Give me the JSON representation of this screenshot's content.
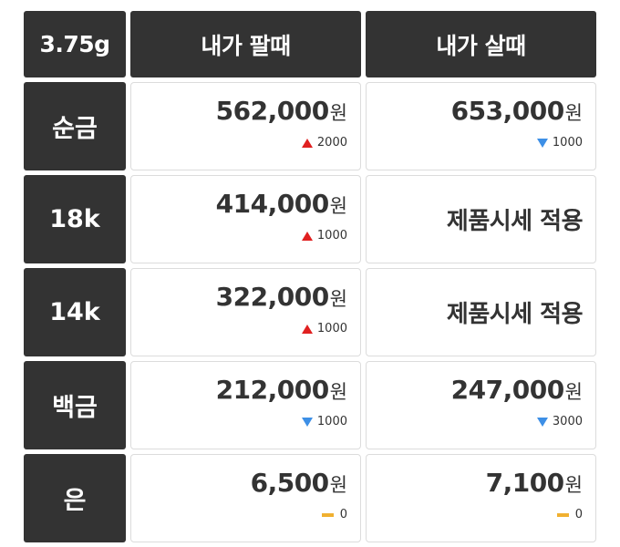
{
  "header": {
    "weight": "3.75g",
    "sell_label": "내가 팔때",
    "buy_label": "내가 살때"
  },
  "unit": "원",
  "rows": [
    {
      "label": "순금",
      "sell": {
        "price": "562,000",
        "direction": "up",
        "change": "2000"
      },
      "buy": {
        "price": "653,000",
        "direction": "down",
        "change": "1000"
      }
    },
    {
      "label": "18k",
      "sell": {
        "price": "414,000",
        "direction": "up",
        "change": "1000"
      },
      "buy": {
        "note": "제품시세 적용"
      }
    },
    {
      "label": "14k",
      "sell": {
        "price": "322,000",
        "direction": "up",
        "change": "1000"
      },
      "buy": {
        "note": "제품시세 적용"
      }
    },
    {
      "label": "백금",
      "sell": {
        "price": "212,000",
        "direction": "down",
        "change": "1000"
      },
      "buy": {
        "price": "247,000",
        "direction": "down",
        "change": "3000"
      }
    },
    {
      "label": "은",
      "sell": {
        "price": "6,500",
        "direction": "flat",
        "change": "0"
      },
      "buy": {
        "price": "7,100",
        "direction": "flat",
        "change": "0"
      }
    }
  ],
  "colors": {
    "header_bg": "#333333",
    "up": "#e02020",
    "down": "#3d8fe6",
    "flat": "#f0b030"
  }
}
